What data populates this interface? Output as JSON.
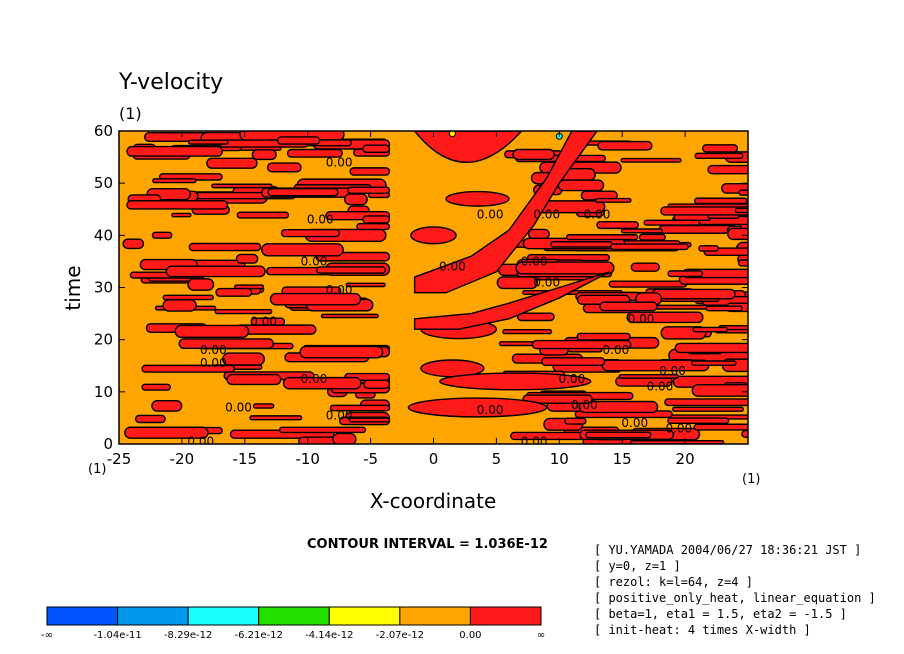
{
  "chart_data": {
    "type": "heatmap",
    "title": "Y-velocity",
    "subtitle": "(1)",
    "xlabel": "X-coordinate",
    "ylabel": "time",
    "x_unit_left": "(1)",
    "x_unit_right": "(1)",
    "xlim": [
      -25,
      25
    ],
    "ylim": [
      0,
      60
    ],
    "xticks": [
      -25,
      -20,
      -15,
      -10,
      -5,
      0,
      5,
      10,
      15,
      20
    ],
    "yticks": [
      0,
      10,
      20,
      30,
      40,
      50,
      60
    ],
    "contour_label": "0.00",
    "contour_interval_text": "CONTOUR INTERVAL = 1.036E-12",
    "colors": {
      "orange": "#ffa500",
      "red": "#ff1a1a",
      "cyan": "#19ffff",
      "yellow": "#ffff00",
      "contour": "#000000"
    },
    "contour_label_positions": [
      {
        "x": -7.5,
        "y": 54
      },
      {
        "x": -9,
        "y": 43
      },
      {
        "x": -9.5,
        "y": 35
      },
      {
        "x": -7.5,
        "y": 29.5
      },
      {
        "x": -13.5,
        "y": 23.5
      },
      {
        "x": -17.5,
        "y": 18
      },
      {
        "x": -17.5,
        "y": 15.5
      },
      {
        "x": -9.5,
        "y": 12.5
      },
      {
        "x": -15.5,
        "y": 7
      },
      {
        "x": -7.5,
        "y": 5.5
      },
      {
        "x": -18.5,
        "y": 0.5
      },
      {
        "x": 4.5,
        "y": 44
      },
      {
        "x": 1.5,
        "y": 34
      },
      {
        "x": 9,
        "y": 44
      },
      {
        "x": 13,
        "y": 44
      },
      {
        "x": 8,
        "y": 35
      },
      {
        "x": 9,
        "y": 31
      },
      {
        "x": 16.5,
        "y": 24
      },
      {
        "x": 14.5,
        "y": 18
      },
      {
        "x": 19,
        "y": 14
      },
      {
        "x": 18,
        "y": 11
      },
      {
        "x": 11,
        "y": 12.5
      },
      {
        "x": 12,
        "y": 7.5
      },
      {
        "x": 16,
        "y": 4
      },
      {
        "x": 19.5,
        "y": 3
      },
      {
        "x": 4.5,
        "y": 6.5
      },
      {
        "x": 8,
        "y": 0.5
      }
    ]
  },
  "legend": {
    "colors": [
      "#0055ff",
      "#0099ee",
      "#19ffff",
      "#22e000",
      "#ffff00",
      "#ffa500",
      "#ff1a1a"
    ],
    "labels": [
      "-∞",
      "-1.04e-11",
      "-8.29e-12",
      "-6.21e-12",
      "-4.14e-12",
      "-2.07e-12",
      "0.00",
      "∞"
    ]
  },
  "info": {
    "lines": [
      "[ YU.YAMADA 2004/06/27 18:36:21 JST ]",
      "[ y=0, z=1 ]",
      "[ rezol: k=l=64, z=4 ]",
      "[ positive_only_heat, linear_equation ]",
      "[ beta=1, eta1 = 1.5, eta2 = -1.5 ]",
      "[ init-heat: 4 times X-width ]"
    ]
  }
}
